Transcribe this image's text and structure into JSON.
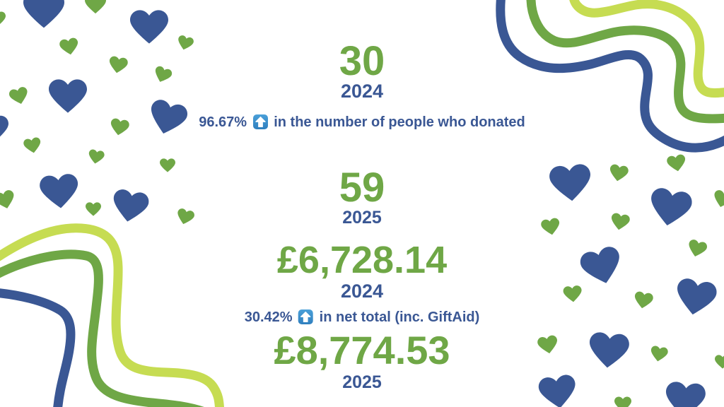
{
  "title": "Donation comparison infographic",
  "colors": {
    "green": "#6FA746",
    "blue": "#3A5794",
    "light_green": "#C6DC52",
    "arrow_blue": "#3E8FC9"
  },
  "icons": {
    "up_arrow": "up-arrow-in-blue-square",
    "heart": "heart"
  },
  "stats": {
    "people": {
      "before": {
        "value": "30",
        "year": "2024"
      },
      "change": {
        "pct": "96.67%",
        "text": "in the number of people who donated"
      },
      "after": {
        "value": "59",
        "year": "2025"
      }
    },
    "net": {
      "before": {
        "value": "£6,728.14",
        "year": "2024"
      },
      "change": {
        "pct": "30.42%",
        "text": "in net total (inc. GiftAid)"
      },
      "after": {
        "value": "£8,774.53",
        "year": "2025"
      }
    }
  }
}
